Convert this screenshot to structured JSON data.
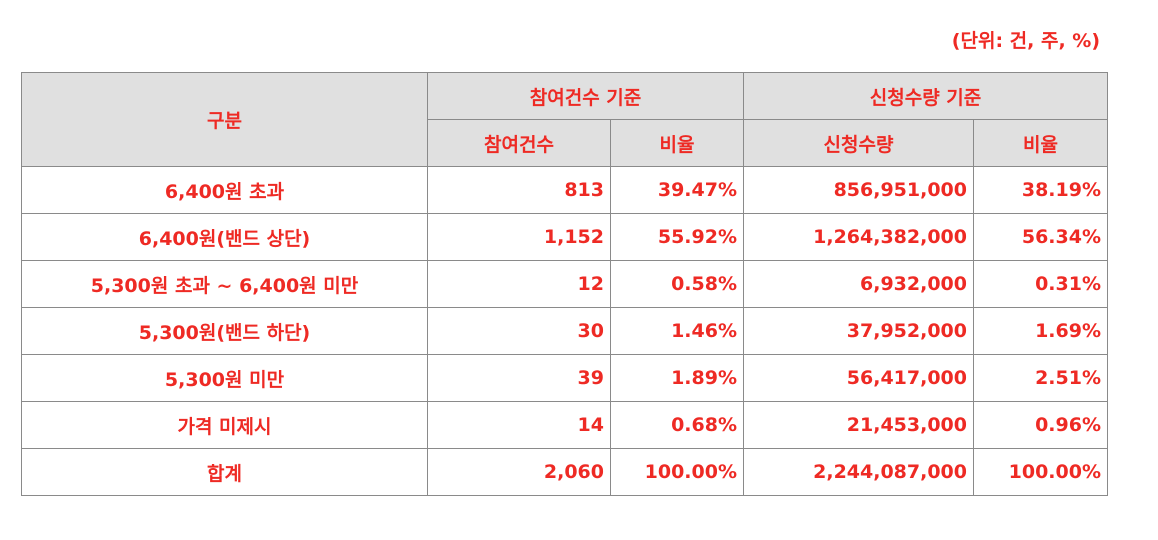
{
  "unit_note": "(단위: 건, 주, %)",
  "header": {
    "category": "구분",
    "group1": "참여건수 기준",
    "group2": "신청수량 기준",
    "sub_count": "참여건수",
    "sub_ratio1": "비율",
    "sub_quantity": "신청수량",
    "sub_ratio2": "비율"
  },
  "rows": [
    {
      "label": "6,400원 초과",
      "count": "813",
      "count_ratio": "39.47%",
      "quantity": "856,951,000",
      "quantity_ratio": "38.19%"
    },
    {
      "label": "6,400원(밴드 상단)",
      "count": "1,152",
      "count_ratio": "55.92%",
      "quantity": "1,264,382,000",
      "quantity_ratio": "56.34%"
    },
    {
      "label": "5,300원 초과 ~ 6,400원 미만",
      "count": "12",
      "count_ratio": "0.58%",
      "quantity": "6,932,000",
      "quantity_ratio": "0.31%"
    },
    {
      "label": "5,300원(밴드 하단)",
      "count": "30",
      "count_ratio": "1.46%",
      "quantity": "37,952,000",
      "quantity_ratio": "1.69%"
    },
    {
      "label": "5,300원 미만",
      "count": "39",
      "count_ratio": "1.89%",
      "quantity": "56,417,000",
      "quantity_ratio": "2.51%"
    },
    {
      "label": "가격 미제시",
      "count": "14",
      "count_ratio": "0.68%",
      "quantity": "21,453,000",
      "quantity_ratio": "0.96%"
    },
    {
      "label": "합계",
      "count": "2,060",
      "count_ratio": "100.00%",
      "quantity": "2,244,087,000",
      "quantity_ratio": "100.00%"
    }
  ],
  "colors": {
    "text": "#ee2a24",
    "header_bg": "#e0e0e0",
    "border": "#8a8a8a"
  }
}
